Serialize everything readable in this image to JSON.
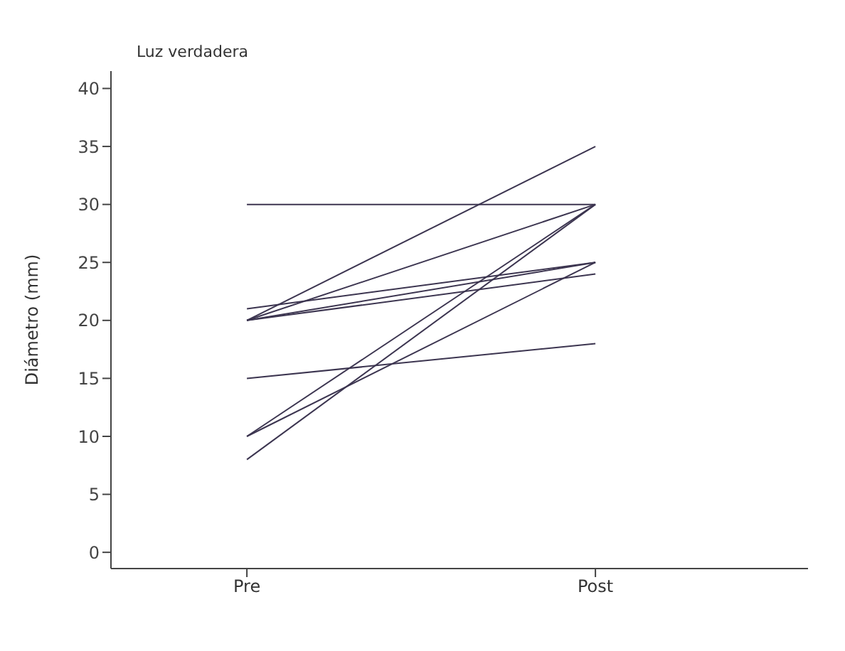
{
  "chart_data": {
    "type": "line",
    "title": "Luz verdadera",
    "ylabel": "Diámetro (mm)",
    "categories": [
      "Pre",
      "Post"
    ],
    "series": [
      {
        "color": "#3c3550",
        "values": [
          30,
          30
        ]
      },
      {
        "color": "#3c3550",
        "values": [
          20,
          35
        ]
      },
      {
        "color": "#3c3550",
        "values": [
          20,
          30
        ]
      },
      {
        "color": "#3c3550",
        "values": [
          21,
          25
        ]
      },
      {
        "color": "#3c3550",
        "values": [
          20,
          25
        ]
      },
      {
        "color": "#3c3550",
        "values": [
          20,
          24
        ]
      },
      {
        "color": "#3c3550",
        "values": [
          15,
          18
        ]
      },
      {
        "color": "#3c3550",
        "values": [
          10,
          30
        ]
      },
      {
        "color": "#3c3550",
        "values": [
          10,
          25
        ]
      },
      {
        "color": "#3c3550",
        "values": [
          8,
          30
        ]
      }
    ],
    "ylim": [
      -1.4,
      41.5
    ],
    "yticks": [
      0,
      5,
      10,
      15,
      20,
      25,
      30,
      35,
      40
    ],
    "grid": false,
    "marker": "none",
    "line_style": "solid"
  }
}
